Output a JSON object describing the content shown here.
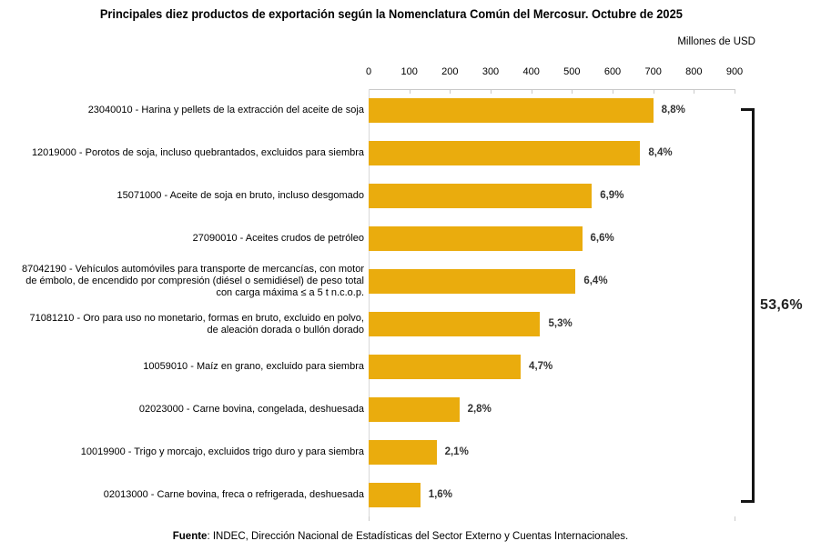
{
  "chart_data": {
    "type": "bar",
    "orientation": "horizontal",
    "title": "Principales diez productos de exportación según la Nomenclatura Común del Mercosur. Octubre de 2025",
    "unit_label": "Millones de USD",
    "x_axis": {
      "position": "top",
      "min": 0,
      "max": 900,
      "ticks": [
        0,
        100,
        200,
        300,
        400,
        500,
        600,
        700,
        800,
        900
      ],
      "grid": false
    },
    "bar_color": "#EAAC0D",
    "rows": [
      {
        "label": "23040010 - Harina y pellets de la extracción del aceite de soja",
        "value_musd": 700,
        "pct": "8,8%"
      },
      {
        "label": "12019000 - Porotos de soja, incluso quebrantados, excluidos para siembra",
        "value_musd": 668,
        "pct": "8,4%"
      },
      {
        "label": "15071000 - Aceite de soja en bruto, incluso desgomado",
        "value_musd": 549,
        "pct": "6,9%"
      },
      {
        "label": "27090010 - Aceites crudos de petróleo",
        "value_musd": 525,
        "pct": "6,6%"
      },
      {
        "label": "87042190 - Vehículos automóviles para transporte de mercancías, con motor de émbolo, de encendido por compresión (diésel o semidiésel) de peso total con carga máxima ≤  a 5 t n.c.o.p.",
        "value_musd": 509,
        "pct": "6,4%"
      },
      {
        "label": "71081210 - Oro para uso no monetario, formas en bruto, excluido en polvo, de aleación dorada o bullón dorado",
        "value_musd": 422,
        "pct": "5,3%"
      },
      {
        "label": "10059010 - Maíz en grano, excluido para siembra",
        "value_musd": 374,
        "pct": "4,7%"
      },
      {
        "label": "02023000 - Carne bovina, congelada, deshuesada",
        "value_musd": 223,
        "pct": "2,8%"
      },
      {
        "label": "10019900 - Trigo y morcajo, excluidos trigo duro y para siembra",
        "value_musd": 167,
        "pct": "2,1%"
      },
      {
        "label": "02013000 - Carne bovina, freca o refrigerada, deshuesada",
        "value_musd": 127,
        "pct": "1,6%"
      }
    ],
    "bracket": {
      "label": "53,6%"
    },
    "source": {
      "bold_prefix": "Fuente",
      "rest": ": INDEC, Dirección Nacional de Estadísticas del Sector Externo y Cuentas Internacionales."
    }
  }
}
